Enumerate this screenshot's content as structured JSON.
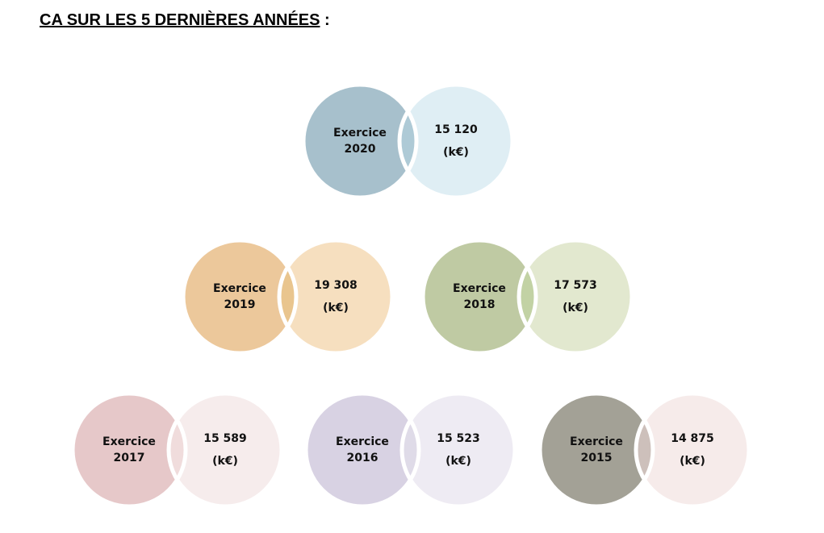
{
  "header": {
    "title": "CA SUR LES 5 DERNIÈRES ANNÉES",
    "suffix": ":"
  },
  "items": [
    {
      "label": "Exercice",
      "year": "2020",
      "value": "15 120",
      "unit": "(k€)",
      "colors": [
        "#a7c0cc",
        "#dfeef4",
        "#aecad6"
      ]
    },
    {
      "label": "Exercice",
      "year": "2019",
      "value": "19 308",
      "unit": "(k€)",
      "colors": [
        "#ecc89b",
        "#f6dfbf",
        "#e9c58e"
      ]
    },
    {
      "label": "Exercice",
      "year": "2018",
      "value": "17 573",
      "unit": "(k€)",
      "colors": [
        "#bfcaa3",
        "#e2e8cf",
        "#c2d2a4"
      ]
    },
    {
      "label": "Exercice",
      "year": "2017",
      "value": "15 589",
      "unit": "(k€)",
      "colors": [
        "#e6c8c9",
        "#f6ecec",
        "#f0dcdc"
      ]
    },
    {
      "label": "Exercice",
      "year": "2016",
      "value": "15 523",
      "unit": "(k€)",
      "colors": [
        "#d8d2e3",
        "#eeebf3",
        "#dfdbe8"
      ]
    },
    {
      "label": "Exercice",
      "year": "2015",
      "value": "14 875",
      "unit": "(k€)",
      "colors": [
        "#a3a196",
        "#f6ebea",
        "#cdc0bb"
      ]
    }
  ]
}
